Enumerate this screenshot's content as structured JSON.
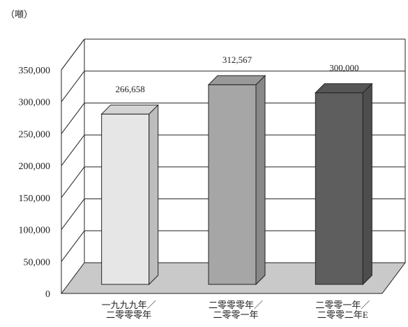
{
  "unit_label": "（噸）",
  "chart_data": {
    "type": "bar",
    "title": "",
    "xlabel": "",
    "ylabel": "（噸）",
    "ylim": [
      0,
      350000
    ],
    "y_ticks": [
      "0",
      "50,000",
      "100,000",
      "150,000",
      "200,000",
      "250,000",
      "300,000",
      "350,000"
    ],
    "y_tick_values": [
      0,
      50000,
      100000,
      150000,
      200000,
      250000,
      300000,
      350000
    ],
    "categories": [
      [
        "一九九九年／",
        "二零零零年"
      ],
      [
        "二零零零年／",
        "二零零一年"
      ],
      [
        "二零零一年／",
        "二零零二年E"
      ]
    ],
    "values": [
      266658,
      312567,
      300000
    ],
    "value_labels": [
      "266,658",
      "312,567",
      "300,000"
    ],
    "bar_colors": [
      "#e6e6e6",
      "#a6a6a6",
      "#5e5e5e"
    ],
    "grid": true,
    "style": "3d"
  }
}
